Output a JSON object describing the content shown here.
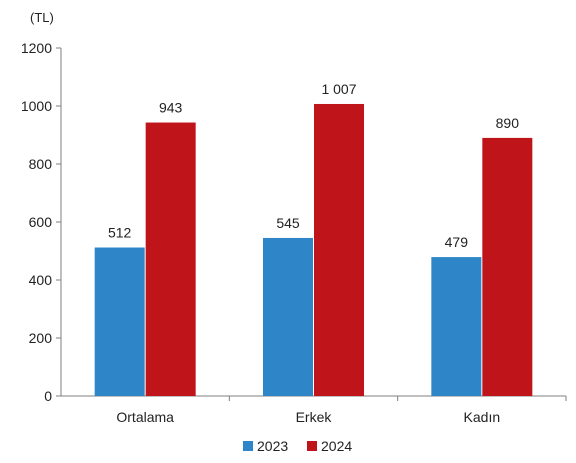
{
  "chart_data": {
    "type": "bar",
    "unit_label": "(TL)",
    "categories": [
      "Ortalama",
      "Erkek",
      "Kadın"
    ],
    "series": [
      {
        "name": "2023",
        "color": "#2E86C9",
        "values": [
          512,
          545,
          479
        ],
        "labels": [
          "512",
          "545",
          "479"
        ]
      },
      {
        "name": "2024",
        "color": "#C0141B",
        "values": [
          943,
          1007,
          890
        ],
        "labels": [
          "943",
          "1 007",
          "890"
        ]
      }
    ],
    "ylim": [
      0,
      1200
    ],
    "yticks": [
      0,
      200,
      400,
      600,
      800,
      1000,
      1200
    ],
    "ytick_labels": [
      "0",
      "200",
      "400",
      "600",
      "800",
      "1000",
      "1200"
    ],
    "grid": false,
    "legend_position": "bottom-center"
  }
}
